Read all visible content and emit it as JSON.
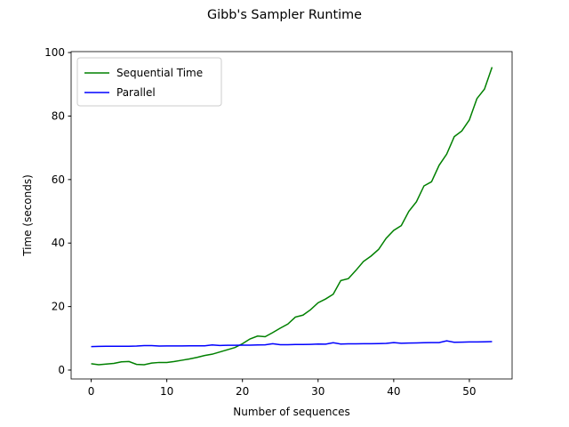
{
  "chart_data": {
    "type": "line",
    "title": "Gibb's Sampler Runtime",
    "x_label": "Number of sequences",
    "y_label": "Time (seconds)",
    "x": [
      0,
      1,
      2,
      3,
      4,
      5,
      6,
      7,
      8,
      9,
      10,
      11,
      12,
      13,
      14,
      15,
      16,
      17,
      18,
      19,
      20,
      21,
      22,
      23,
      24,
      25,
      26,
      27,
      28,
      29,
      30,
      31,
      32,
      33,
      34,
      35,
      36,
      37,
      38,
      39,
      40,
      41,
      42,
      43,
      44,
      45,
      46,
      47,
      48,
      49,
      50,
      51,
      52,
      53
    ],
    "series": [
      {
        "name": "Sequential Time",
        "color": "#008000",
        "values": [
          2.0,
          1.7,
          1.9,
          2.1,
          2.6,
          2.7,
          1.8,
          1.7,
          2.2,
          2.4,
          2.4,
          2.7,
          3.1,
          3.5,
          4.0,
          4.6,
          5.0,
          5.7,
          6.4,
          7.1,
          8.3,
          9.8,
          10.7,
          10.5,
          11.8,
          13.2,
          14.5,
          16.7,
          17.3,
          19.0,
          21.2,
          22.4,
          23.9,
          28.2,
          28.8,
          31.4,
          34.2,
          35.9,
          38.0,
          41.5,
          44.0,
          45.5,
          50.0,
          53.0,
          58.0,
          59.3,
          64.5,
          68.0,
          73.5,
          75.3,
          78.8,
          85.5,
          88.5,
          95.4
        ]
      },
      {
        "name": "Parallel",
        "color": "#0000ff",
        "values": [
          7.4,
          7.45,
          7.5,
          7.5,
          7.5,
          7.5,
          7.55,
          7.7,
          7.7,
          7.55,
          7.6,
          7.6,
          7.6,
          7.65,
          7.65,
          7.65,
          7.9,
          7.75,
          7.8,
          7.8,
          7.85,
          7.85,
          7.9,
          7.95,
          8.3,
          8.0,
          8.0,
          8.05,
          8.05,
          8.1,
          8.2,
          8.15,
          8.6,
          8.2,
          8.25,
          8.25,
          8.3,
          8.3,
          8.35,
          8.4,
          8.65,
          8.45,
          8.5,
          8.55,
          8.6,
          8.65,
          8.65,
          9.2,
          8.75,
          8.8,
          8.85,
          8.85,
          8.9,
          8.95
        ]
      }
    ],
    "xlim": [
      -2.65,
      55.65
    ],
    "xticks": [
      0,
      10,
      20,
      30,
      40,
      50
    ],
    "ylim": [
      -2.8,
      100.3
    ],
    "yticks": [
      0,
      20,
      40,
      60,
      80,
      100
    ],
    "grid": false,
    "legend": "upper left"
  }
}
